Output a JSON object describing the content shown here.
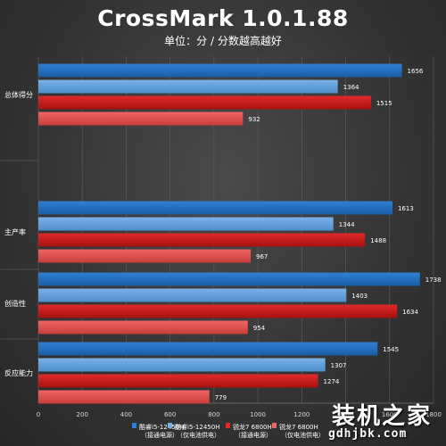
{
  "colors": {
    "blue_dark": [
      "#2f7fd4",
      "#1a5ea8"
    ],
    "blue_light": [
      "#7ab0e6",
      "#4f8fce"
    ],
    "red_dark": [
      "#e02a2a",
      "#a81010"
    ],
    "red_light": [
      "#ef6464",
      "#c93c3c"
    ],
    "gridline": "#5a5a5a"
  },
  "watermark": {
    "name": "装机之家",
    "url": "gdhjbk.com"
  },
  "chart_data": {
    "type": "bar",
    "orientation": "horizontal",
    "title": "CrossMark 1.0.1.88",
    "subtitle": "单位：分 / 分数越高越好",
    "categories": [
      "总体得分",
      "主产率",
      "创造性",
      "反应能力"
    ],
    "series": [
      {
        "name": "酷睿i5-12450H\n（接通电源）",
        "values": [
          1656,
          1613,
          1738,
          1545
        ]
      },
      {
        "name": "酷睿i5-12450H\n（仅电池供电）",
        "values": [
          1364,
          1344,
          1403,
          1307
        ]
      },
      {
        "name": "锐龙7 6800H\n（接通电源）",
        "values": [
          1515,
          1488,
          1634,
          1274
        ]
      },
      {
        "name": "锐龙7 6800H\n（仅电池供电）",
        "values": [
          932,
          967,
          954,
          779
        ]
      }
    ],
    "xlim": [
      0,
      1800
    ],
    "xticks": [
      0,
      200,
      400,
      600,
      800,
      1000,
      1200,
      1400,
      1600,
      1800
    ],
    "grid": true,
    "legend": "bottom"
  }
}
